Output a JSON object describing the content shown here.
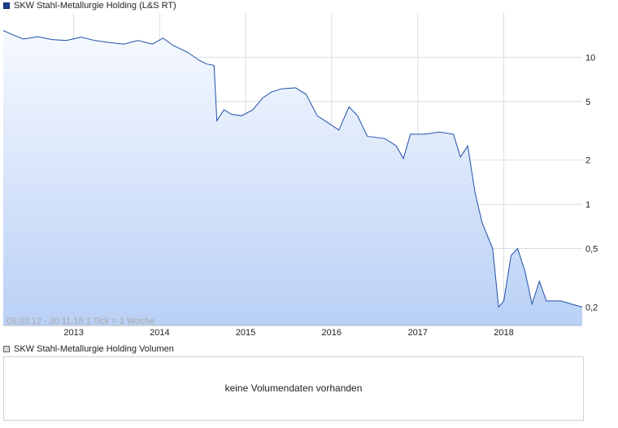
{
  "legend": {
    "price_label": "SKW Stahl-Metallurgie Holding (L&S RT)",
    "volume_label": "SKW Stahl-Metallurgie Holding Volumen"
  },
  "range_label": "08.03.12 - 30.11.18   1 Tick = 1 Woche",
  "volume_message": "keine Volumendaten vorhanden",
  "colors": {
    "line": "#1f4fa8",
    "fill_top": "#f6f9ff",
    "fill_bottom": "#b9d0f5",
    "grid": "#d7dde6"
  },
  "chart_data": {
    "type": "area",
    "scale": "log",
    "ylim": [
      0.15,
      20
    ],
    "xlim": [
      "2012-03-08",
      "2018-11-30"
    ],
    "xticks": [
      {
        "date": "2013-01-01",
        "label": "2013"
      },
      {
        "date": "2014-01-01",
        "label": "2014"
      },
      {
        "date": "2015-01-01",
        "label": "2015"
      },
      {
        "date": "2016-01-01",
        "label": "2016"
      },
      {
        "date": "2017-01-01",
        "label": "2017"
      },
      {
        "date": "2018-01-01",
        "label": "2018"
      }
    ],
    "yticks": [
      {
        "value": 10,
        "label": "10"
      },
      {
        "value": 5,
        "label": "5"
      },
      {
        "value": 2,
        "label": "2"
      },
      {
        "value": 1,
        "label": "1"
      },
      {
        "value": 0.5,
        "label": "0,5"
      },
      {
        "value": 0.2,
        "label": "0,2"
      }
    ],
    "grid": true,
    "series": [
      {
        "values": [
          [
            "2012-03-08",
            15.2
          ],
          [
            "2012-04-10",
            14.4
          ],
          [
            "2012-06-01",
            13.3
          ],
          [
            "2012-08-01",
            13.8
          ],
          [
            "2012-10-01",
            13.2
          ],
          [
            "2012-12-01",
            13.0
          ],
          [
            "2013-02-01",
            13.7
          ],
          [
            "2013-04-01",
            13.0
          ],
          [
            "2013-06-01",
            12.6
          ],
          [
            "2013-08-01",
            12.3
          ],
          [
            "2013-10-01",
            13.0
          ],
          [
            "2013-12-01",
            12.3
          ],
          [
            "2014-01-15",
            13.5
          ],
          [
            "2014-03-01",
            12.0
          ],
          [
            "2014-05-01",
            10.8
          ],
          [
            "2014-06-15",
            9.6
          ],
          [
            "2014-07-20",
            9.0
          ],
          [
            "2014-08-20",
            8.8
          ],
          [
            "2014-09-01",
            3.7
          ],
          [
            "2014-10-01",
            4.4
          ],
          [
            "2014-11-01",
            4.1
          ],
          [
            "2014-12-15",
            4.0
          ],
          [
            "2015-02-01",
            4.4
          ],
          [
            "2015-03-15",
            5.3
          ],
          [
            "2015-04-20",
            5.8
          ],
          [
            "2015-06-01",
            6.1
          ],
          [
            "2015-08-01",
            6.2
          ],
          [
            "2015-09-15",
            5.6
          ],
          [
            "2015-11-01",
            4.0
          ],
          [
            "2015-12-15",
            3.6
          ],
          [
            "2016-02-01",
            3.2
          ],
          [
            "2016-03-15",
            4.6
          ],
          [
            "2016-04-20",
            4.0
          ],
          [
            "2016-06-01",
            2.9
          ],
          [
            "2016-08-15",
            2.8
          ],
          [
            "2016-10-01",
            2.5
          ],
          [
            "2016-11-01",
            2.05
          ],
          [
            "2016-12-01",
            3.0
          ],
          [
            "2017-02-01",
            3.0
          ],
          [
            "2017-04-01",
            3.1
          ],
          [
            "2017-06-01",
            3.0
          ],
          [
            "2017-07-01",
            2.1
          ],
          [
            "2017-08-01",
            2.5
          ],
          [
            "2017-09-01",
            1.2
          ],
          [
            "2017-10-01",
            0.75
          ],
          [
            "2017-11-15",
            0.5
          ],
          [
            "2017-12-10",
            0.2
          ],
          [
            "2018-01-01",
            0.22
          ],
          [
            "2018-02-01",
            0.45
          ],
          [
            "2018-03-01",
            0.5
          ],
          [
            "2018-04-01",
            0.35
          ],
          [
            "2018-05-01",
            0.21
          ],
          [
            "2018-06-01",
            0.3
          ],
          [
            "2018-07-01",
            0.22
          ],
          [
            "2018-09-01",
            0.22
          ],
          [
            "2018-10-15",
            0.21
          ],
          [
            "2018-11-30",
            0.2
          ]
        ]
      }
    ]
  }
}
